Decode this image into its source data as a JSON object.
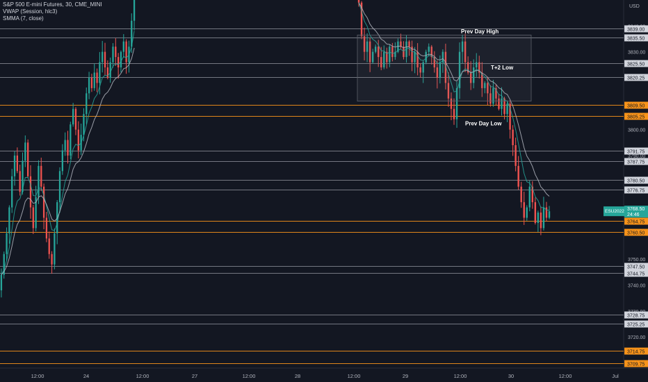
{
  "legend": {
    "symbol": "S&P 500 E-mini Futures, 30, CME_MINI",
    "vwap": "VWAP (Session, hlc3)",
    "smma": "SMMA (7, close)"
  },
  "currency": "USD",
  "ticker": {
    "name": "ESU2022",
    "price": "3768.50",
    "countdown": "24:46",
    "color": "#26a69a"
  },
  "colors": {
    "background": "#131722",
    "up": "#26a69a",
    "down": "#ef5350",
    "gray_line": "#9598a1",
    "orange_line": "#f7931a",
    "vwap": "#26a69a",
    "smma": "#b2b5be"
  },
  "annotations": [
    {
      "text": "Prev Day High",
      "price": 3838.0,
      "x_label": "29"
    },
    {
      "text": "T+2 Low",
      "price": 3824.0,
      "x_label": "29"
    },
    {
      "text": "Prev Day Low",
      "price": 3802.5,
      "x_label": "29"
    }
  ],
  "chart_data": {
    "type": "candlestick",
    "ylim": [
      3708,
      3850
    ],
    "y_ticks": [
      "3840.00",
      "3830.00",
      "3820.00",
      "3810.00",
      "3800.00",
      "3790.00",
      "3780.00",
      "3770.00",
      "3760.00",
      "3750.00",
      "3740.00",
      "3730.00",
      "3720.00",
      "3710.00"
    ],
    "x_ticks": [
      "12:00",
      "24",
      "12:00",
      "27",
      "12:00",
      "28",
      "12:00",
      "29",
      "12:00",
      "30",
      "12:00",
      "Jul"
    ],
    "horizontal_levels": [
      {
        "value": "3839.00",
        "color": "gray"
      },
      {
        "value": "3835.50",
        "color": "gray"
      },
      {
        "value": "3825.50",
        "color": "gray"
      },
      {
        "value": "3820.25",
        "color": "gray"
      },
      {
        "value": "3809.50",
        "color": "orange"
      },
      {
        "value": "3805.25",
        "color": "orange"
      },
      {
        "value": "3791.75",
        "color": "gray"
      },
      {
        "value": "3787.75",
        "color": "gray"
      },
      {
        "value": "3780.50",
        "color": "gray"
      },
      {
        "value": "3776.75",
        "color": "gray"
      },
      {
        "value": "3764.75",
        "color": "orange"
      },
      {
        "value": "3760.50",
        "color": "orange"
      },
      {
        "value": "3747.50",
        "color": "gray"
      },
      {
        "value": "3744.75",
        "color": "gray"
      },
      {
        "value": "3728.75",
        "color": "gray"
      },
      {
        "value": "3725.25",
        "color": "gray"
      },
      {
        "value": "3714.75",
        "color": "orange"
      },
      {
        "value": "3709.75",
        "color": "orange"
      }
    ],
    "session_a_closes": [
      3744,
      3752,
      3760,
      3770,
      3782,
      3790,
      3784,
      3776,
      3788,
      3795,
      3782,
      3770,
      3762,
      3774,
      3786,
      3778,
      3766,
      3758,
      3752,
      3748,
      3760,
      3772,
      3784,
      3792,
      3796,
      3790,
      3802,
      3808,
      3800,
      3792,
      3798,
      3806,
      3814,
      3820,
      3816,
      3822,
      3818,
      3826,
      3830,
      3824,
      3820,
      3826,
      3832,
      3828,
      3824,
      3830,
      3834,
      3826,
      3832,
      3842,
      3856
    ],
    "session_b_closes": [
      3849,
      3836,
      3830,
      3834,
      3826,
      3830,
      3832,
      3828,
      3824,
      3830,
      3826,
      3832,
      3828,
      3830,
      3834,
      3832,
      3828,
      3834,
      3832,
      3826,
      3830,
      3824,
      3822,
      3826,
      3830,
      3832,
      3828,
      3824,
      3820,
      3826,
      3830,
      3818,
      3812,
      3808,
      3804,
      3816,
      3830,
      3834,
      3826,
      3822,
      3818,
      3824,
      3826,
      3822,
      3816,
      3818,
      3814,
      3810,
      3816,
      3812,
      3808,
      3812,
      3806,
      3810,
      3800,
      3794,
      3786,
      3778,
      3772,
      3766,
      3770,
      3778,
      3772,
      3764,
      3768,
      3762,
      3770,
      3766,
      3768.5
    ]
  }
}
